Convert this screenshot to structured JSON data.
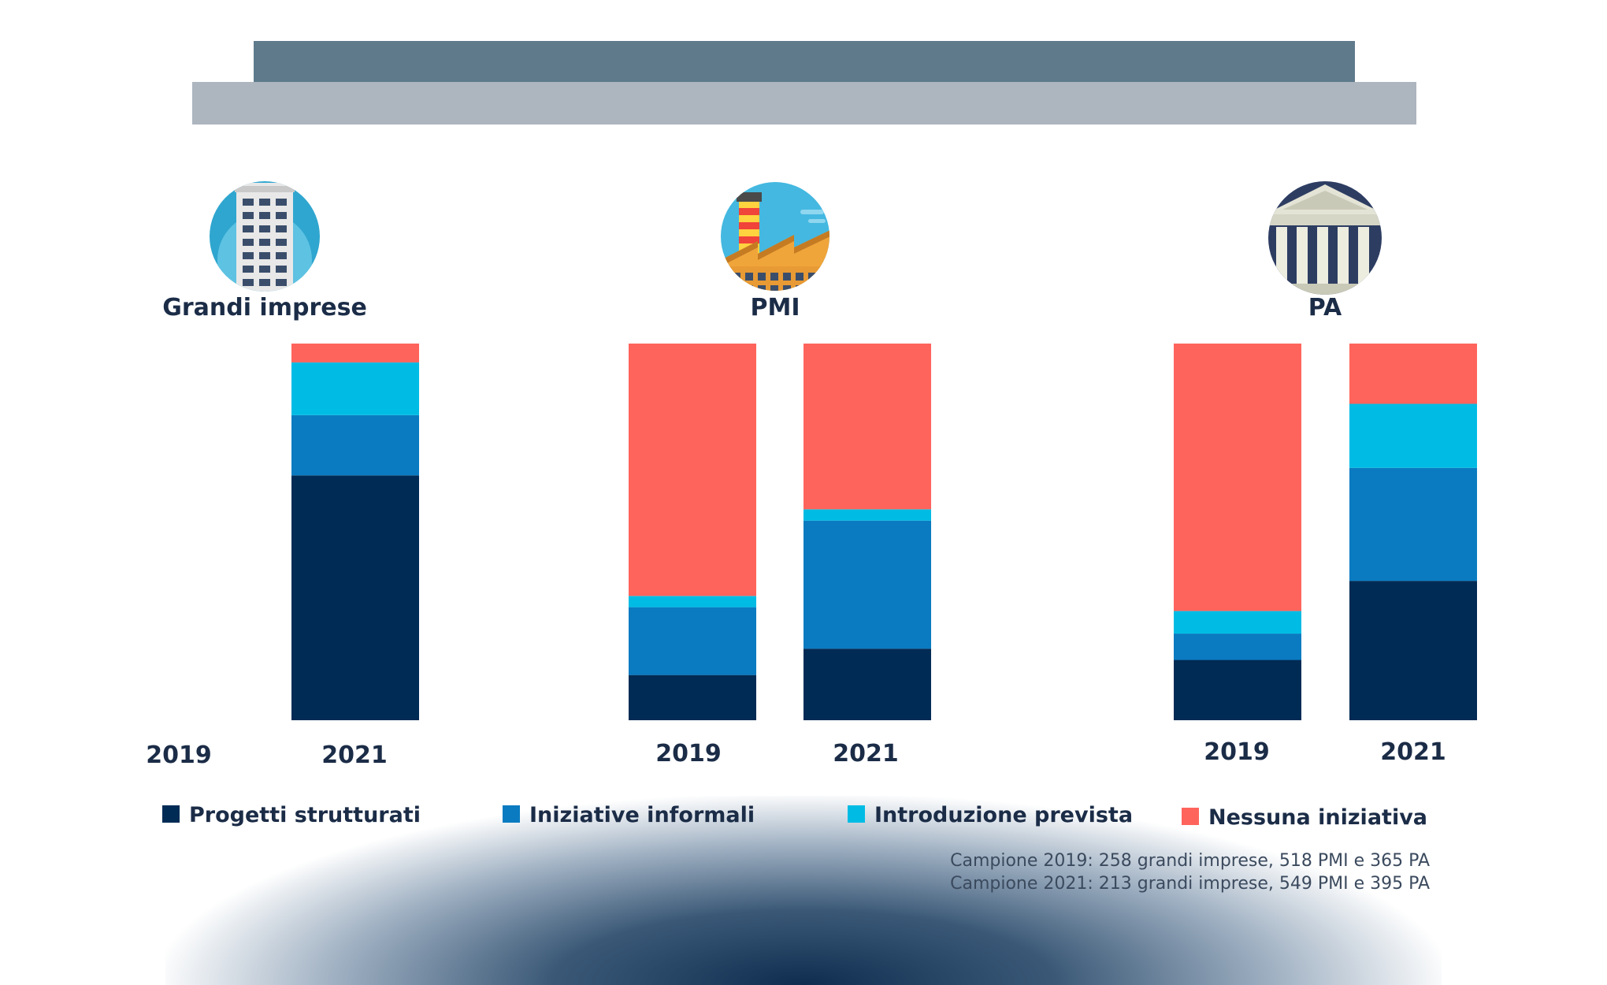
{
  "chart_data": {
    "type": "bar",
    "stacked": true,
    "orientation": "vertical",
    "ylim": [
      0,
      100
    ],
    "groups": [
      {
        "name": "Grandi imprese",
        "icon": "office-building-icon",
        "years": [
          "2019",
          "2021"
        ],
        "series": [
          {
            "name": "Progetti strutturati",
            "values": [
              null,
              65
            ]
          },
          {
            "name": "Iniziative informali",
            "values": [
              null,
              16
            ]
          },
          {
            "name": "Introduzione prevista",
            "values": [
              null,
              14
            ]
          },
          {
            "name": "Nessuna iniziativa",
            "values": [
              null,
              5
            ]
          }
        ]
      },
      {
        "name": "PMI",
        "icon": "factory-icon",
        "years": [
          "2019",
          "2021"
        ],
        "series": [
          {
            "name": "Progetti strutturati",
            "values": [
              12,
              19
            ]
          },
          {
            "name": "Iniziative informali",
            "values": [
              18,
              34
            ]
          },
          {
            "name": "Introduzione prevista",
            "values": [
              3,
              3
            ]
          },
          {
            "name": "Nessuna iniziativa",
            "values": [
              67,
              44
            ]
          }
        ]
      },
      {
        "name": "PA",
        "icon": "government-building-icon",
        "years": [
          "2019",
          "2021"
        ],
        "series": [
          {
            "name": "Progetti strutturati",
            "values": [
              16,
              37
            ]
          },
          {
            "name": "Iniziative informali",
            "values": [
              7,
              30
            ]
          },
          {
            "name": "Introduzione prevista",
            "values": [
              6,
              17
            ]
          },
          {
            "name": "Nessuna iniziativa",
            "values": [
              71,
              16
            ]
          }
        ]
      }
    ],
    "legend": [
      {
        "label": "Progetti strutturati",
        "color": "#002b55"
      },
      {
        "label": "Iniziative informali",
        "color": "#0a7bc1"
      },
      {
        "label": "Introduzione prevista",
        "color": "#00bce4"
      },
      {
        "label": "Nessuna iniziativa",
        "color": "#ff645c"
      }
    ],
    "legend_position": "bottom"
  },
  "notes": [
    "Campione 2019: 258 grandi imprese, 518 PMI e 365 PA",
    "Campione 2021: 213 grandi imprese, 549 PMI e 395 PA"
  ]
}
